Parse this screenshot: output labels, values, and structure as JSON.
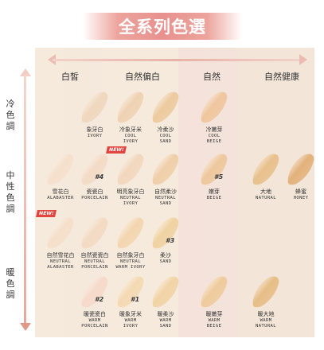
{
  "title": "全系列色選",
  "columns": [
    "白皙",
    "自然偏白",
    "自然",
    "自然健康"
  ],
  "rows": [
    "冷色調",
    "中性色調",
    "暖色調"
  ],
  "shades": [
    {
      "id": "ivory",
      "zh": "象牙白",
      "en1": "IVORY",
      "en2": "",
      "color": "#f0d7be",
      "badge": "",
      "new": false
    },
    {
      "id": "cool-ivory",
      "zh": "冷象牙米",
      "en1": "COOL",
      "en2": "IVORY",
      "color": "#efd2b3",
      "badge": "",
      "new": false
    },
    {
      "id": "cool-sand",
      "zh": "冷柔沙",
      "en1": "COOL",
      "en2": "SAND",
      "color": "#edca9f",
      "badge": "",
      "new": false
    },
    {
      "id": "cool-beige",
      "zh": "冷嫩芽",
      "en1": "COOL",
      "en2": "BEIGE",
      "color": "#efc69e",
      "badge": "",
      "new": false
    },
    {
      "id": "alabaster",
      "zh": "雪花白",
      "en1": "ALABASTER",
      "en2": "",
      "color": "#f5e0cd",
      "badge": "",
      "new": false
    },
    {
      "id": "porcelain",
      "zh": "瓷瓷白",
      "en1": "PORCELAIN",
      "en2": "",
      "color": "#f3dbc6",
      "badge": "#4",
      "new": false
    },
    {
      "id": "neutral-ivory",
      "zh": "明亮象牙白",
      "en1": "NEUTRAL",
      "en2": "IVORY",
      "color": "#f1d7bd",
      "badge": "",
      "new": true
    },
    {
      "id": "neutral-sand",
      "zh": "自然柔沙",
      "en1": "NEUTRAL",
      "en2": "SAND",
      "color": "#efcfa9",
      "badge": "",
      "new": false
    },
    {
      "id": "beige",
      "zh": "嫩芽",
      "en1": "BEIGE",
      "en2": "",
      "color": "#eec89d",
      "badge": "#5",
      "new": false
    },
    {
      "id": "natural",
      "zh": "大地",
      "en1": "NATURAL",
      "en2": "",
      "color": "#e8c08c",
      "badge": "",
      "new": false
    },
    {
      "id": "honey",
      "zh": "蜂蜜",
      "en1": "HONEY",
      "en2": "",
      "color": "#e3b27b",
      "badge": "",
      "new": false
    },
    {
      "id": "neutral-alabaster",
      "zh": "自然雪花白",
      "en1": "NEUTRAL",
      "en2": "ALABASTER",
      "color": "#f5dfcb",
      "badge": "",
      "new": true
    },
    {
      "id": "neutral-porcelain",
      "zh": "自然瓷瓷白",
      "en1": "NEUTRAL",
      "en2": "PORCELAIN",
      "color": "#f3dac3",
      "badge": "",
      "new": false
    },
    {
      "id": "neutral-warm-ivory",
      "zh": "自然象牙白",
      "en1": "NEUTRAL",
      "en2": "WARM IVORY",
      "color": "#f3d6b0",
      "badge": "",
      "new": false
    },
    {
      "id": "sand",
      "zh": "柔沙",
      "en1": "SAND",
      "en2": "",
      "color": "#f0d2a2",
      "badge": "#3",
      "new": false
    },
    {
      "id": "warm-porcelain",
      "zh": "暖瓷瓷白",
      "en1": "WARM",
      "en2": "PORCELAIN",
      "color": "#f6d9ca",
      "badge": "#2",
      "new": false
    },
    {
      "id": "warm-ivory",
      "zh": "暖象牙米",
      "en1": "WARM",
      "en2": "IVORY",
      "color": "#f4d9b3",
      "badge": "#1",
      "new": false
    },
    {
      "id": "warm-sand",
      "zh": "暖柔沙",
      "en1": "WARM",
      "en2": "SAND",
      "color": "#f1d3a5",
      "badge": "",
      "new": false
    },
    {
      "id": "warm-beige",
      "zh": "暖嫩芽",
      "en1": "WARM",
      "en2": "BEIGE",
      "color": "#eecb9c",
      "badge": "",
      "new": false
    },
    {
      "id": "warm-natural",
      "zh": "暖大地",
      "en1": "WARM",
      "en2": "NATURAL",
      "color": "#e7bd86",
      "badge": "",
      "new": false
    }
  ],
  "new_label": "NEW!"
}
